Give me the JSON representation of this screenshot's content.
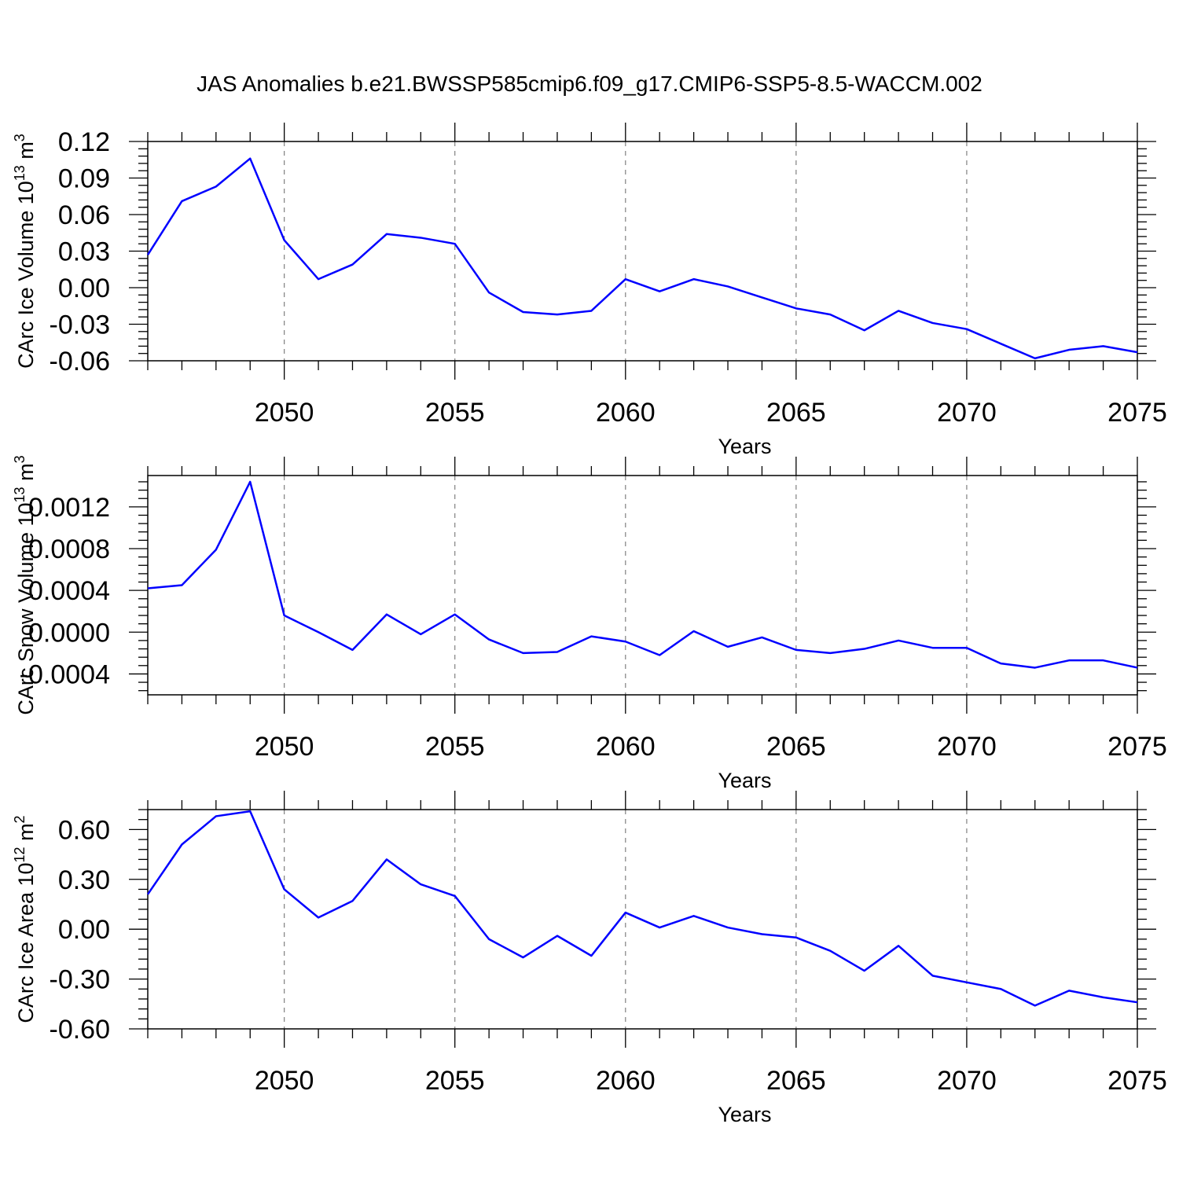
{
  "title": "JAS Anomalies b.e21.BWSSP585cmip6.f09_g17.CMIP6-SSP5-8.5-WACCM.002",
  "colors": {
    "series": "#0000ff",
    "axes": "#000000",
    "grid": "#808080"
  },
  "chart_data": [
    {
      "type": "line",
      "title": "JAS Anomalies b.e21.BWSSP585cmip6.f09_g17.CMIP6-SSP5-8.5-WACCM.002",
      "xlabel": "Years",
      "ylabel": "CArc Ice Volume 10",
      "ylabel_exp": "13",
      "ylabel_unit": " m",
      "ylabel_unit_exp": "3",
      "xlim": [
        2046,
        2075
      ],
      "ylim": [
        -0.06,
        0.12
      ],
      "xticks": [
        "2050",
        "2055",
        "2060",
        "2065",
        "2070",
        "2075"
      ],
      "yticks": [
        "0.12",
        "0.09",
        "0.06",
        "0.03",
        "0.00",
        "-0.03",
        "-0.06"
      ],
      "x": [
        2046,
        2047,
        2048,
        2049,
        2050,
        2051,
        2052,
        2053,
        2054,
        2055,
        2056,
        2057,
        2058,
        2059,
        2060,
        2061,
        2062,
        2063,
        2064,
        2065,
        2066,
        2067,
        2068,
        2069,
        2070,
        2071,
        2072,
        2073,
        2074,
        2075
      ],
      "values": [
        0.027,
        0.071,
        0.083,
        0.106,
        0.039,
        0.007,
        0.019,
        0.044,
        0.041,
        0.036,
        -0.004,
        -0.02,
        -0.022,
        -0.019,
        0.007,
        -0.003,
        0.007,
        0.001,
        -0.008,
        -0.017,
        -0.022,
        -0.035,
        -0.019,
        -0.029,
        -0.034,
        -0.046,
        -0.058,
        -0.051,
        -0.048,
        -0.053
      ]
    },
    {
      "type": "line",
      "xlabel": "Years",
      "ylabel": "CArc Snow Volume 10",
      "ylabel_exp": "13",
      "ylabel_unit": " m",
      "ylabel_unit_exp": "3",
      "xlim": [
        2046,
        2075
      ],
      "ylim": [
        -0.0006,
        0.0015
      ],
      "xticks": [
        "2050",
        "2055",
        "2060",
        "2065",
        "2070",
        "2075"
      ],
      "yticks": [
        "0.0012",
        "0.0008",
        "0.0004",
        "0.0000",
        "-0.0004"
      ],
      "x": [
        2046,
        2047,
        2048,
        2049,
        2050,
        2051,
        2052,
        2053,
        2054,
        2055,
        2056,
        2057,
        2058,
        2059,
        2060,
        2061,
        2062,
        2063,
        2064,
        2065,
        2066,
        2067,
        2068,
        2069,
        2070,
        2071,
        2072,
        2073,
        2074,
        2075
      ],
      "values": [
        0.00042,
        0.00045,
        0.00079,
        0.00144,
        0.00016,
        0.0,
        -0.00017,
        0.00017,
        -2e-05,
        0.00017,
        -7e-05,
        -0.0002,
        -0.00019,
        -4e-05,
        -9e-05,
        -0.00022,
        1e-05,
        -0.00014,
        -5e-05,
        -0.00017,
        -0.0002,
        -0.00016,
        -8e-05,
        -0.00015,
        -0.00015,
        -0.0003,
        -0.00034,
        -0.00027,
        -0.00027,
        -0.00034
      ]
    },
    {
      "type": "line",
      "xlabel": "Years",
      "ylabel": "CArc Ice Area 10",
      "ylabel_exp": "12",
      "ylabel_unit": " m",
      "ylabel_unit_exp": "2",
      "xlim": [
        2046,
        2075
      ],
      "ylim": [
        -0.6,
        0.72
      ],
      "xticks": [
        "2050",
        "2055",
        "2060",
        "2065",
        "2070",
        "2075"
      ],
      "yticks": [
        "0.60",
        "0.30",
        "0.00",
        "-0.30",
        "-0.60"
      ],
      "x": [
        2046,
        2047,
        2048,
        2049,
        2050,
        2051,
        2052,
        2053,
        2054,
        2055,
        2056,
        2057,
        2058,
        2059,
        2060,
        2061,
        2062,
        2063,
        2064,
        2065,
        2066,
        2067,
        2068,
        2069,
        2070,
        2071,
        2072,
        2073,
        2074,
        2075
      ],
      "values": [
        0.21,
        0.51,
        0.68,
        0.71,
        0.24,
        0.07,
        0.17,
        0.42,
        0.27,
        0.2,
        -0.06,
        -0.17,
        -0.04,
        -0.16,
        0.1,
        0.01,
        0.08,
        0.01,
        -0.03,
        -0.05,
        -0.13,
        -0.25,
        -0.1,
        -0.28,
        -0.32,
        -0.36,
        -0.46,
        -0.37,
        -0.41,
        -0.44
      ]
    }
  ]
}
